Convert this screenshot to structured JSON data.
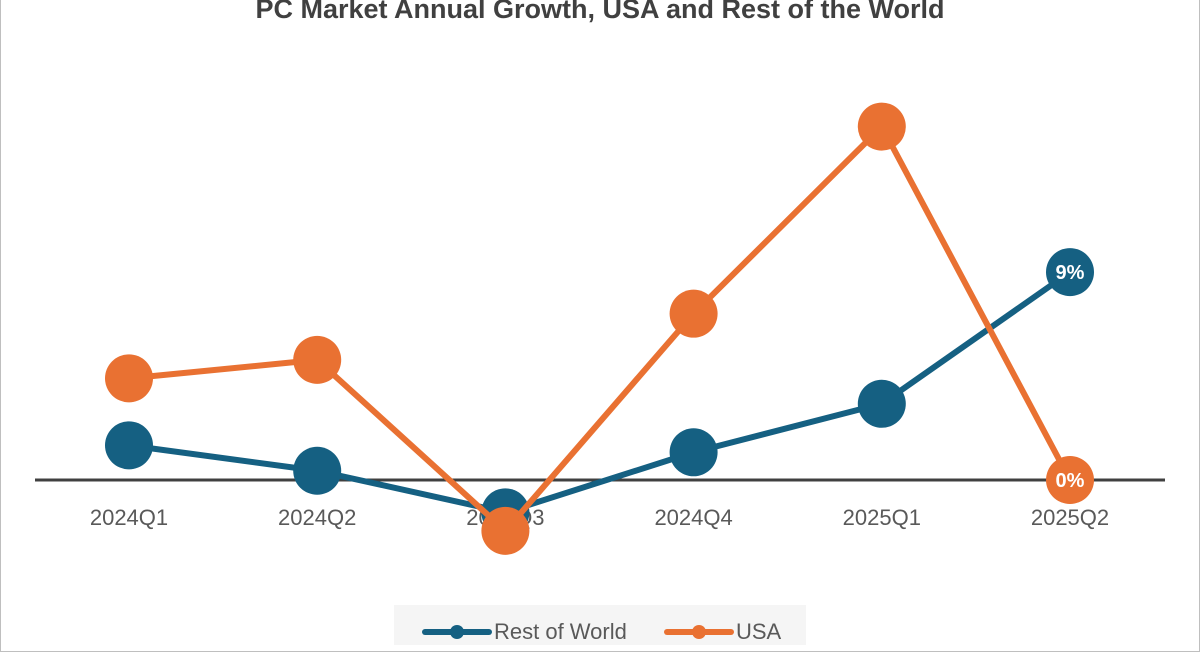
{
  "chart_data": {
    "type": "line",
    "title": "PC Market Annual Growth, USA and Rest of the World",
    "categories": [
      "2024Q1",
      "2024Q2",
      "2024Q3",
      "2024Q4",
      "2025Q1",
      "2025Q2"
    ],
    "series": [
      {
        "name": "Rest of World",
        "color": "#156082",
        "values": [
          1.5,
          0.4,
          -1.4,
          1.2,
          3.3,
          9
        ]
      },
      {
        "name": "USA",
        "color": "#E97132",
        "values": [
          4.4,
          5.2,
          -2.2,
          7.2,
          15.3,
          0
        ]
      }
    ],
    "data_labels": [
      {
        "series": "Rest of World",
        "category": "2025Q2",
        "text": "9%"
      },
      {
        "series": "USA",
        "category": "2025Q2",
        "text": "0%"
      }
    ],
    "xlabel": "",
    "ylabel": "",
    "ylim": [
      -6,
      21
    ],
    "grid": false,
    "legend_position": "bottom"
  }
}
